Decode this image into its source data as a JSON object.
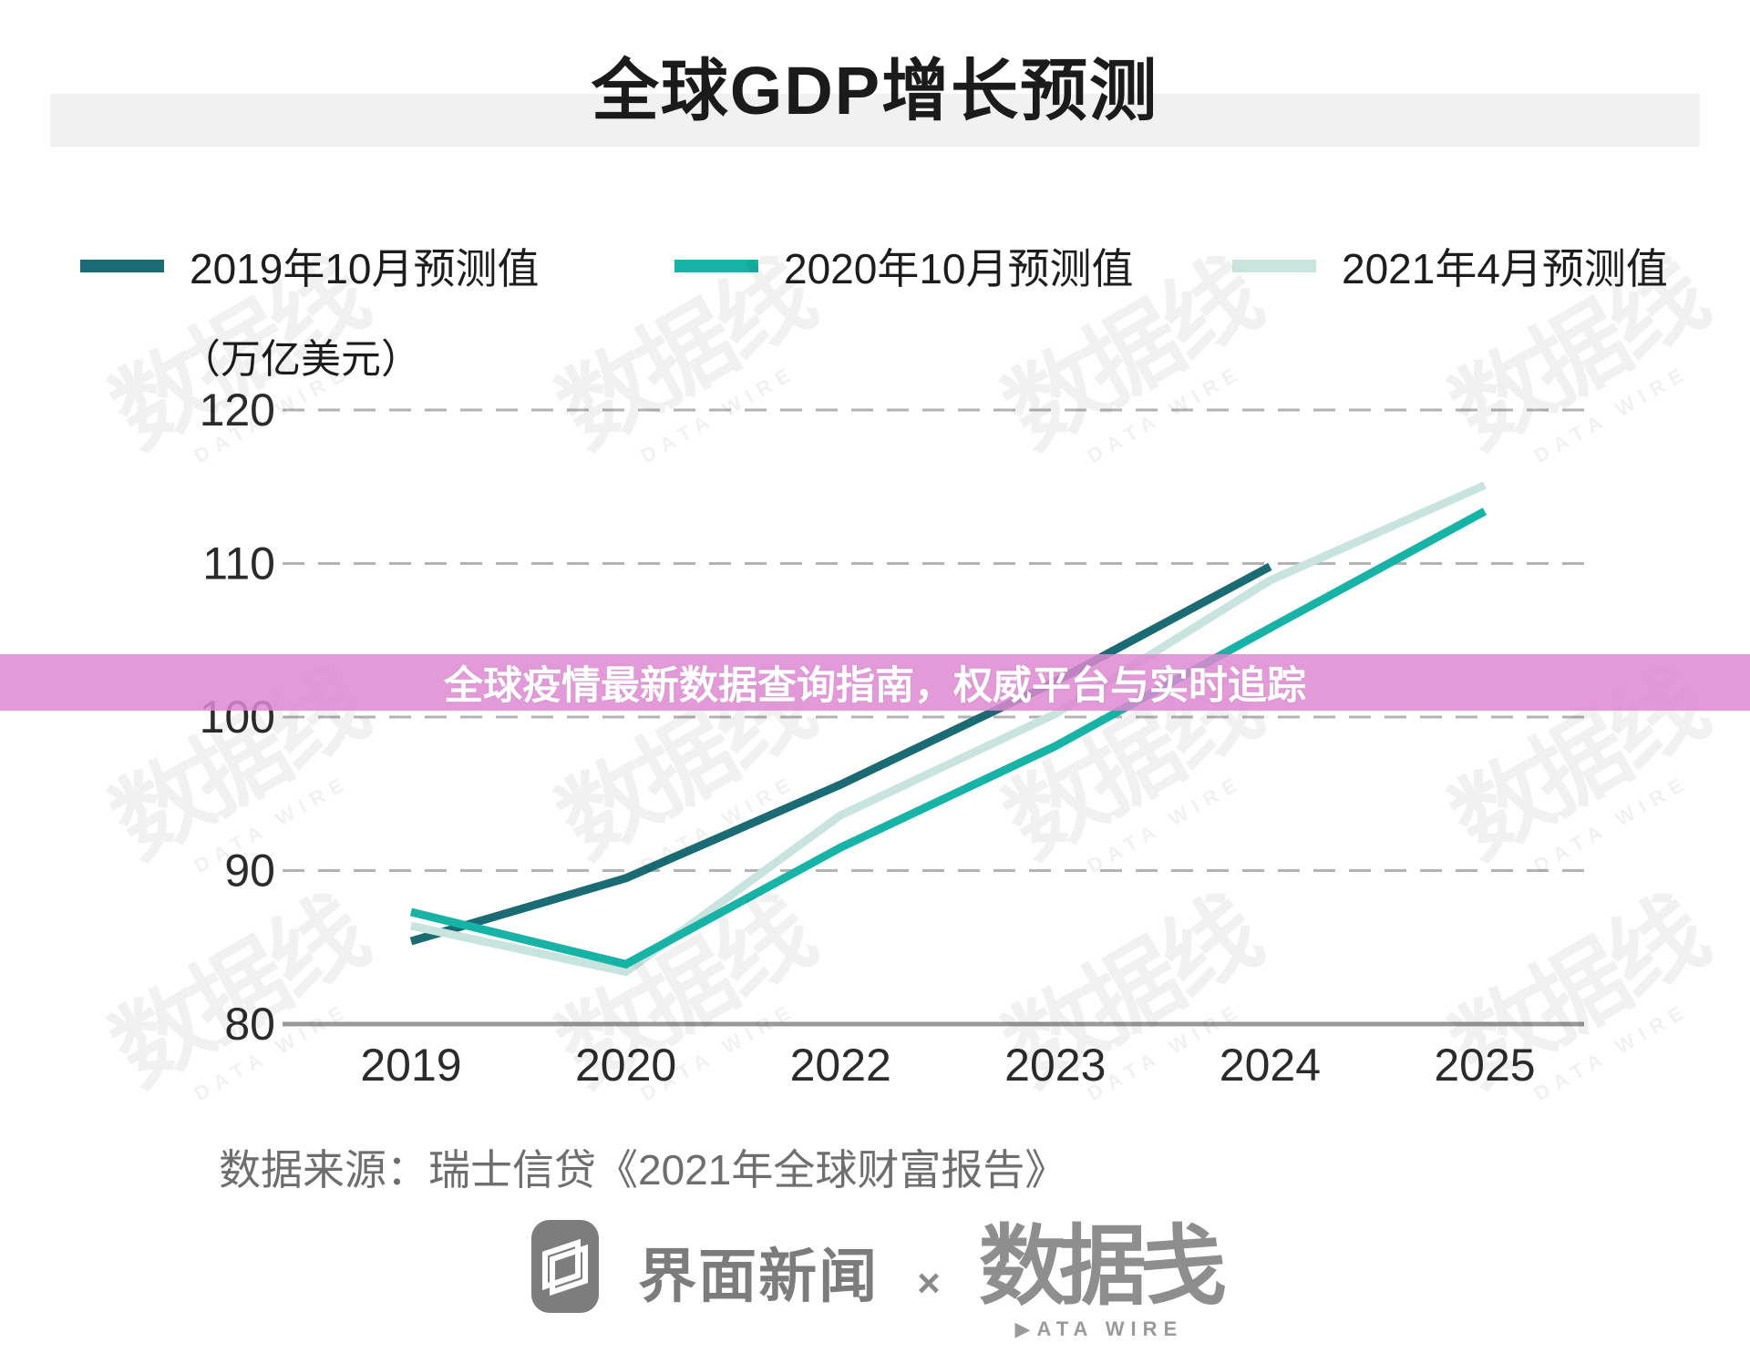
{
  "title": "全球GDP增长预测",
  "banner": {
    "text": "全球疫情最新数据查询指南，权威平台与实时追踪",
    "color": "#de88d1"
  },
  "unit_label": "（万亿美元）",
  "source": "数据来源：瑞士信贷《2021年全球财富报告》",
  "watermark": {
    "text": "数据线",
    "subtext": "DATA WIRE"
  },
  "footer": {
    "jiemian": "界面新闻",
    "separator": "×",
    "datawire": "数据戋",
    "datawire_caption": "▶ATA WIRE"
  },
  "chart_data": {
    "type": "line",
    "title": "全球GDP增长预测",
    "unit": "万亿美元",
    "xlabel": "",
    "ylabel": "（万亿美元）",
    "categories": [
      "2019",
      "2020",
      "2022",
      "2023",
      "2024",
      "2025"
    ],
    "series": [
      {
        "name": "2019年10月预测值",
        "color": "#1a6b74",
        "values": [
          85.4,
          89.5,
          95.6,
          102.3,
          109.8,
          null
        ]
      },
      {
        "name": "2020年10月预测值",
        "color": "#17b3a6",
        "values": [
          87.3,
          83.9,
          91.5,
          98.1,
          105.8,
          113.4
        ]
      },
      {
        "name": "2021年4月预测值",
        "color": "#c9e4df",
        "values": [
          86.4,
          83.4,
          93.6,
          100.2,
          108.9,
          115.1
        ]
      }
    ],
    "ylim": [
      80,
      120
    ],
    "yticks": [
      80,
      90,
      100,
      110,
      120
    ],
    "grid": "horizontal dashed gridlines, solid baseline at 80",
    "legend_position": "top"
  }
}
